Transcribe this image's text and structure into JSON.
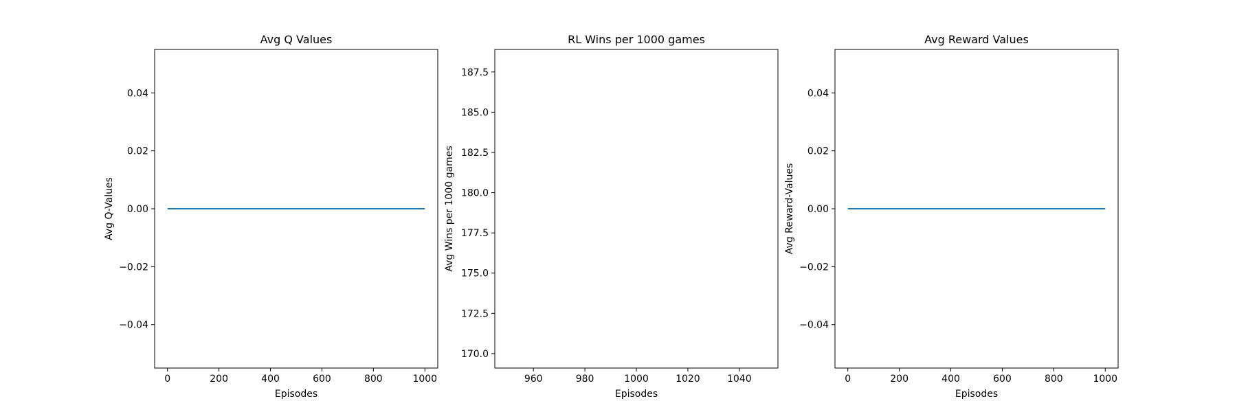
{
  "chart_data": [
    {
      "type": "line",
      "title": "Avg Q Values",
      "xlabel": "Episodes",
      "ylabel": "Avg Q-Values",
      "xlim": [
        -50,
        1050
      ],
      "ylim": [
        -0.055,
        0.055
      ],
      "xticks": [
        0,
        200,
        400,
        600,
        800,
        1000
      ],
      "xtick_labels": [
        "0",
        "200",
        "400",
        "600",
        "800",
        "1000"
      ],
      "yticks": [
        -0.04,
        -0.02,
        0.0,
        0.02,
        0.04
      ],
      "ytick_labels": [
        "−0.04",
        "−0.02",
        "0.00",
        "0.02",
        "0.04"
      ],
      "grid": false,
      "series": [
        {
          "color": "#1f77b4",
          "x": [
            0,
            1000
          ],
          "y": [
            0,
            0
          ]
        }
      ]
    },
    {
      "type": "line",
      "title": "RL Wins per 1000 games",
      "xlabel": "Episodes",
      "ylabel": "Avg Wins per 1000 games",
      "xlim": [
        945,
        1055
      ],
      "ylim": [
        169.1,
        188.9
      ],
      "xticks": [
        960,
        980,
        1000,
        1020,
        1040
      ],
      "xtick_labels": [
        "960",
        "980",
        "1000",
        "1020",
        "1040"
      ],
      "yticks": [
        170.0,
        172.5,
        175.0,
        177.5,
        180.0,
        182.5,
        185.0,
        187.5
      ],
      "ytick_labels": [
        "170.0",
        "172.5",
        "175.0",
        "177.5",
        "180.0",
        "182.5",
        "185.0",
        "187.5"
      ],
      "grid": false,
      "series": []
    },
    {
      "type": "line",
      "title": "Avg Reward Values",
      "xlabel": "Episodes",
      "ylabel": "Avg Reward-Values",
      "xlim": [
        -50,
        1050
      ],
      "ylim": [
        -0.055,
        0.055
      ],
      "xticks": [
        0,
        200,
        400,
        600,
        800,
        1000
      ],
      "xtick_labels": [
        "0",
        "200",
        "400",
        "600",
        "800",
        "1000"
      ],
      "yticks": [
        -0.04,
        -0.02,
        0.0,
        0.02,
        0.04
      ],
      "ytick_labels": [
        "−0.04",
        "−0.02",
        "0.00",
        "0.02",
        "0.04"
      ],
      "grid": false,
      "series": [
        {
          "color": "#1f77b4",
          "x": [
            0,
            1000
          ],
          "y": [
            0,
            0
          ]
        }
      ]
    }
  ]
}
